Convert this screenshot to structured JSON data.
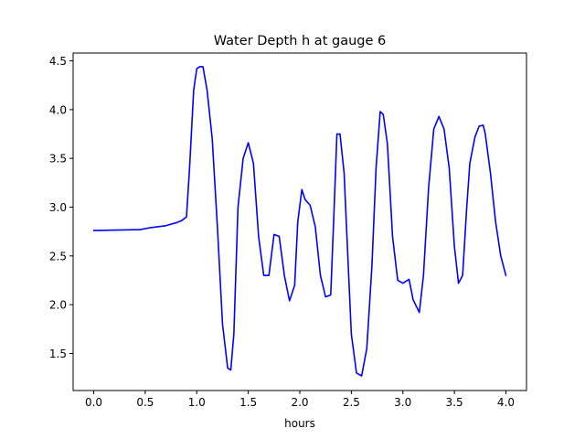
{
  "chart_data": {
    "type": "line",
    "title": "Water Depth h at gauge 6",
    "xlabel": "hours",
    "ylabel": "",
    "xlim": [
      -0.2,
      4.2
    ],
    "ylim": [
      1.12,
      4.58
    ],
    "xticks": [
      0.0,
      0.5,
      1.0,
      1.5,
      2.0,
      2.5,
      3.0,
      3.5,
      4.0
    ],
    "xtick_labels": [
      "0.0",
      "0.5",
      "1.0",
      "1.5",
      "2.0",
      "2.5",
      "3.0",
      "3.5",
      "4.0"
    ],
    "yticks": [
      1.5,
      2.0,
      2.5,
      3.0,
      3.5,
      4.0,
      4.5
    ],
    "ytick_labels": [
      "1.5",
      "2.0",
      "2.5",
      "3.0",
      "3.5",
      "4.0",
      "4.5"
    ],
    "grid": false,
    "legend": "none",
    "series": [
      {
        "color": "#0000ff",
        "x": [
          0.0,
          0.2,
          0.45,
          0.55,
          0.7,
          0.8,
          0.85,
          0.9,
          0.93,
          0.97,
          1.0,
          1.03,
          1.06,
          1.1,
          1.15,
          1.2,
          1.25,
          1.3,
          1.33,
          1.36,
          1.4,
          1.45,
          1.5,
          1.55,
          1.6,
          1.65,
          1.7,
          1.75,
          1.8,
          1.85,
          1.9,
          1.95,
          1.98,
          2.02,
          2.05,
          2.1,
          2.15,
          2.2,
          2.25,
          2.3,
          2.33,
          2.36,
          2.39,
          2.43,
          2.47,
          2.5,
          2.55,
          2.6,
          2.65,
          2.7,
          2.74,
          2.78,
          2.81,
          2.85,
          2.9,
          2.95,
          3.0,
          3.06,
          3.1,
          3.16,
          3.2,
          3.25,
          3.3,
          3.35,
          3.4,
          3.45,
          3.5,
          3.54,
          3.58,
          3.62,
          3.65,
          3.7,
          3.74,
          3.78,
          3.8,
          3.85,
          3.9,
          3.95,
          4.0
        ],
        "y": [
          2.76,
          2.765,
          2.77,
          2.79,
          2.81,
          2.84,
          2.86,
          2.9,
          3.4,
          4.2,
          4.42,
          4.44,
          4.44,
          4.2,
          3.7,
          2.8,
          1.8,
          1.35,
          1.33,
          1.7,
          3.0,
          3.5,
          3.66,
          3.45,
          2.7,
          2.3,
          2.3,
          2.72,
          2.7,
          2.3,
          2.04,
          2.2,
          2.85,
          3.18,
          3.08,
          3.02,
          2.8,
          2.3,
          2.08,
          2.1,
          2.9,
          3.75,
          3.75,
          3.35,
          2.4,
          1.7,
          1.3,
          1.27,
          1.55,
          2.4,
          3.4,
          3.98,
          3.95,
          3.65,
          2.7,
          2.25,
          2.22,
          2.26,
          2.05,
          1.92,
          2.3,
          3.2,
          3.8,
          3.93,
          3.8,
          3.4,
          2.6,
          2.22,
          2.3,
          3.0,
          3.45,
          3.72,
          3.83,
          3.84,
          3.75,
          3.35,
          2.85,
          2.5,
          2.3
        ]
      }
    ]
  }
}
